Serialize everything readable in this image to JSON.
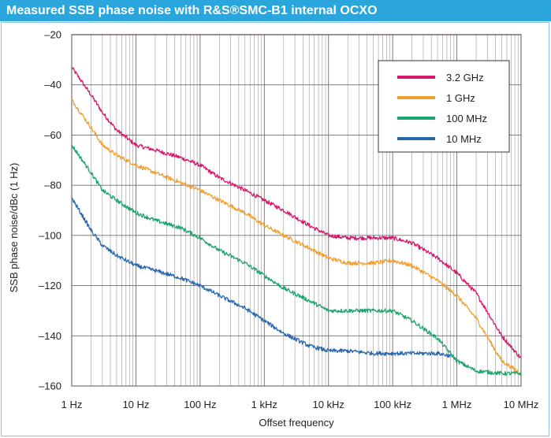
{
  "title": "Measured SSB phase noise with R&S®SMC-B1 internal OCXO",
  "colors": {
    "title_bar": "#2aa6dc",
    "grid": "#9a9a9a",
    "top_line": "#c2185b"
  },
  "chart_data": {
    "type": "line",
    "title": "Measured SSB phase noise with R&S®SMC-B1 internal OCXO",
    "xlabel": "Offset frequency",
    "ylabel": "SSB phase noise/dBc (1 Hz)",
    "x_scale": "log",
    "xlim": [
      1,
      10000000
    ],
    "ylim": [
      -160,
      -20
    ],
    "x_ticks": [
      1,
      10,
      100,
      1000,
      10000,
      100000,
      1000000,
      10000000
    ],
    "x_tick_labels": [
      "1 Hz",
      "10 Hz",
      "100 Hz",
      "1 kHz",
      "10 kHz",
      "100 kHz",
      "1 MHz",
      "10 MHz"
    ],
    "y_ticks": [
      -20,
      -40,
      -60,
      -80,
      -100,
      -120,
      -140,
      -160
    ],
    "y_tick_labels": [
      "–20",
      "–40",
      "–60",
      "–80",
      "–100",
      "–120",
      "–140",
      "–160"
    ],
    "grid": true,
    "legend_position": "top-right",
    "series": [
      {
        "name": "3.2 GHz",
        "color": "#d4186c",
        "x": [
          1,
          2,
          3,
          5,
          10,
          20,
          50,
          100,
          200,
          500,
          1000,
          2000,
          5000,
          10000,
          20000,
          50000,
          100000,
          200000,
          500000,
          1000000,
          2000000,
          5000000,
          10000000
        ],
        "y": [
          -33,
          -44,
          -51,
          -58,
          -64,
          -66,
          -69,
          -72,
          -77,
          -82,
          -86,
          -90,
          -96,
          -100,
          -101,
          -101,
          -101,
          -103,
          -109,
          -115,
          -123,
          -140,
          -149
        ]
      },
      {
        "name": "1 GHz",
        "color": "#f0a030",
        "x": [
          1,
          2,
          3,
          5,
          10,
          20,
          50,
          100,
          200,
          500,
          1000,
          2000,
          5000,
          10000,
          20000,
          50000,
          100000,
          200000,
          500000,
          1000000,
          2000000,
          5000000,
          10000000
        ],
        "y": [
          -46,
          -57,
          -64,
          -68,
          -72,
          -75,
          -79,
          -82,
          -86,
          -91,
          -96,
          -100,
          -105,
          -109,
          -111,
          -111,
          -110,
          -112,
          -118,
          -124,
          -133,
          -150,
          -155
        ]
      },
      {
        "name": "100 MHz",
        "color": "#1fa36c",
        "x": [
          1,
          2,
          3,
          5,
          10,
          20,
          50,
          100,
          200,
          500,
          1000,
          2000,
          5000,
          10000,
          20000,
          50000,
          100000,
          200000,
          500000,
          1000000,
          2000000,
          5000000,
          10000000
        ],
        "y": [
          -64,
          -75,
          -82,
          -86,
          -91,
          -94,
          -97,
          -101,
          -106,
          -111,
          -116,
          -121,
          -126,
          -130,
          -130,
          -130,
          -130,
          -134,
          -141,
          -150,
          -154,
          -155,
          -155
        ]
      },
      {
        "name": "10 MHz",
        "color": "#2667b0",
        "x": [
          1,
          2,
          3,
          5,
          10,
          20,
          50,
          100,
          200,
          500,
          1000,
          2000,
          5000,
          10000,
          20000,
          50000,
          100000,
          200000,
          500000,
          800000
        ],
        "y": [
          -85,
          -98,
          -104,
          -108,
          -112,
          -114,
          -117,
          -120,
          -124,
          -129,
          -134,
          -139,
          -144,
          -146,
          -146,
          -147,
          -147,
          -147,
          -147,
          -148
        ]
      }
    ]
  }
}
